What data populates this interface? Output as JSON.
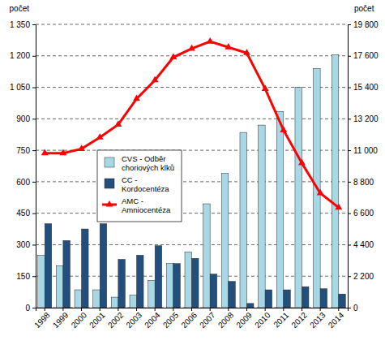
{
  "chart_data": {
    "type": "bar",
    "categories": [
      "1998",
      "1999",
      "2000",
      "2001",
      "2002",
      "2003",
      "2004",
      "2005",
      "2006",
      "2007",
      "2008",
      "2009",
      "2010",
      "2011",
      "2012",
      "2013",
      "2014"
    ],
    "series": [
      {
        "name": "CVS - Odběr choriových klků",
        "color": "#a8d8e6",
        "values": [
          250,
          200,
          85,
          85,
          50,
          60,
          130,
          210,
          265,
          495,
          640,
          835,
          870,
          935,
          1050,
          1140,
          1205
        ]
      },
      {
        "name": "CC - Kordocentéza",
        "color": "#234f7d",
        "values": [
          400,
          320,
          375,
          400,
          230,
          250,
          295,
          210,
          235,
          160,
          125,
          20,
          85,
          85,
          100,
          90,
          65
        ]
      },
      {
        "name": "AMC - Amniocentéza",
        "type": "line",
        "color": "#ff0000",
        "marker": "triangle",
        "axis": "y2",
        "values": [
          10800,
          10800,
          11100,
          11900,
          12800,
          14600,
          15900,
          17500,
          18100,
          18600,
          18200,
          17800,
          15300,
          12400,
          10100,
          8000,
          7000
        ]
      }
    ],
    "y_label": "počet",
    "y2_label": "počet",
    "ylim": [
      0,
      1350
    ],
    "yticks": [
      0,
      150,
      300,
      450,
      600,
      750,
      900,
      {
        "value": 1050,
        "label": "1 050"
      },
      {
        "value": 1200,
        "label": "1 200"
      },
      {
        "value": 1350,
        "label": "1 350"
      }
    ],
    "y2lim": [
      0,
      19800
    ],
    "y2ticks": [
      0,
      {
        "value": 2200,
        "label": "2 200"
      },
      {
        "value": 4400,
        "label": "4 400"
      },
      {
        "value": 6600,
        "label": "6 600"
      },
      {
        "value": 8800,
        "label": "8 800"
      },
      {
        "value": 11000,
        "label": "11 000"
      },
      {
        "value": 13200,
        "label": "13 200"
      },
      {
        "value": 15400,
        "label": "15 400"
      },
      {
        "value": 17600,
        "label": "17 600"
      },
      {
        "value": 19800,
        "label": "19 800"
      }
    ],
    "grid": true,
    "legend": "left"
  }
}
